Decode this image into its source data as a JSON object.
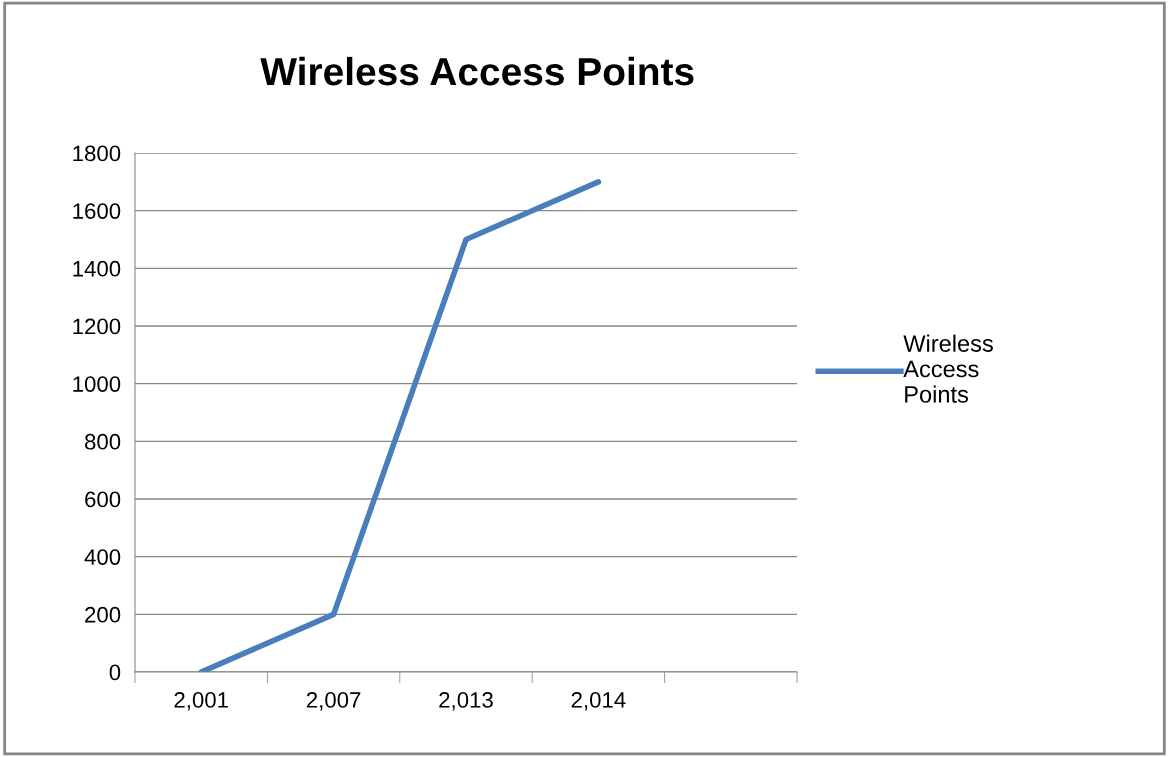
{
  "chart_data": {
    "type": "line",
    "title": "Wireless Access Points",
    "categories": [
      "2,001",
      "2,007",
      "2,013",
      "2,014",
      null
    ],
    "series": [
      {
        "name": "Wireless Access Points",
        "color": "#4a7ebb",
        "values": [
          0,
          200,
          1500,
          1700,
          null
        ]
      }
    ],
    "ylim": [
      0,
      1800
    ],
    "yticks": [
      0,
      200,
      400,
      600,
      800,
      1000,
      1200,
      1400,
      1600,
      1800
    ],
    "grid": "y",
    "legend": "right",
    "marker": "none",
    "line_style": "solid"
  }
}
